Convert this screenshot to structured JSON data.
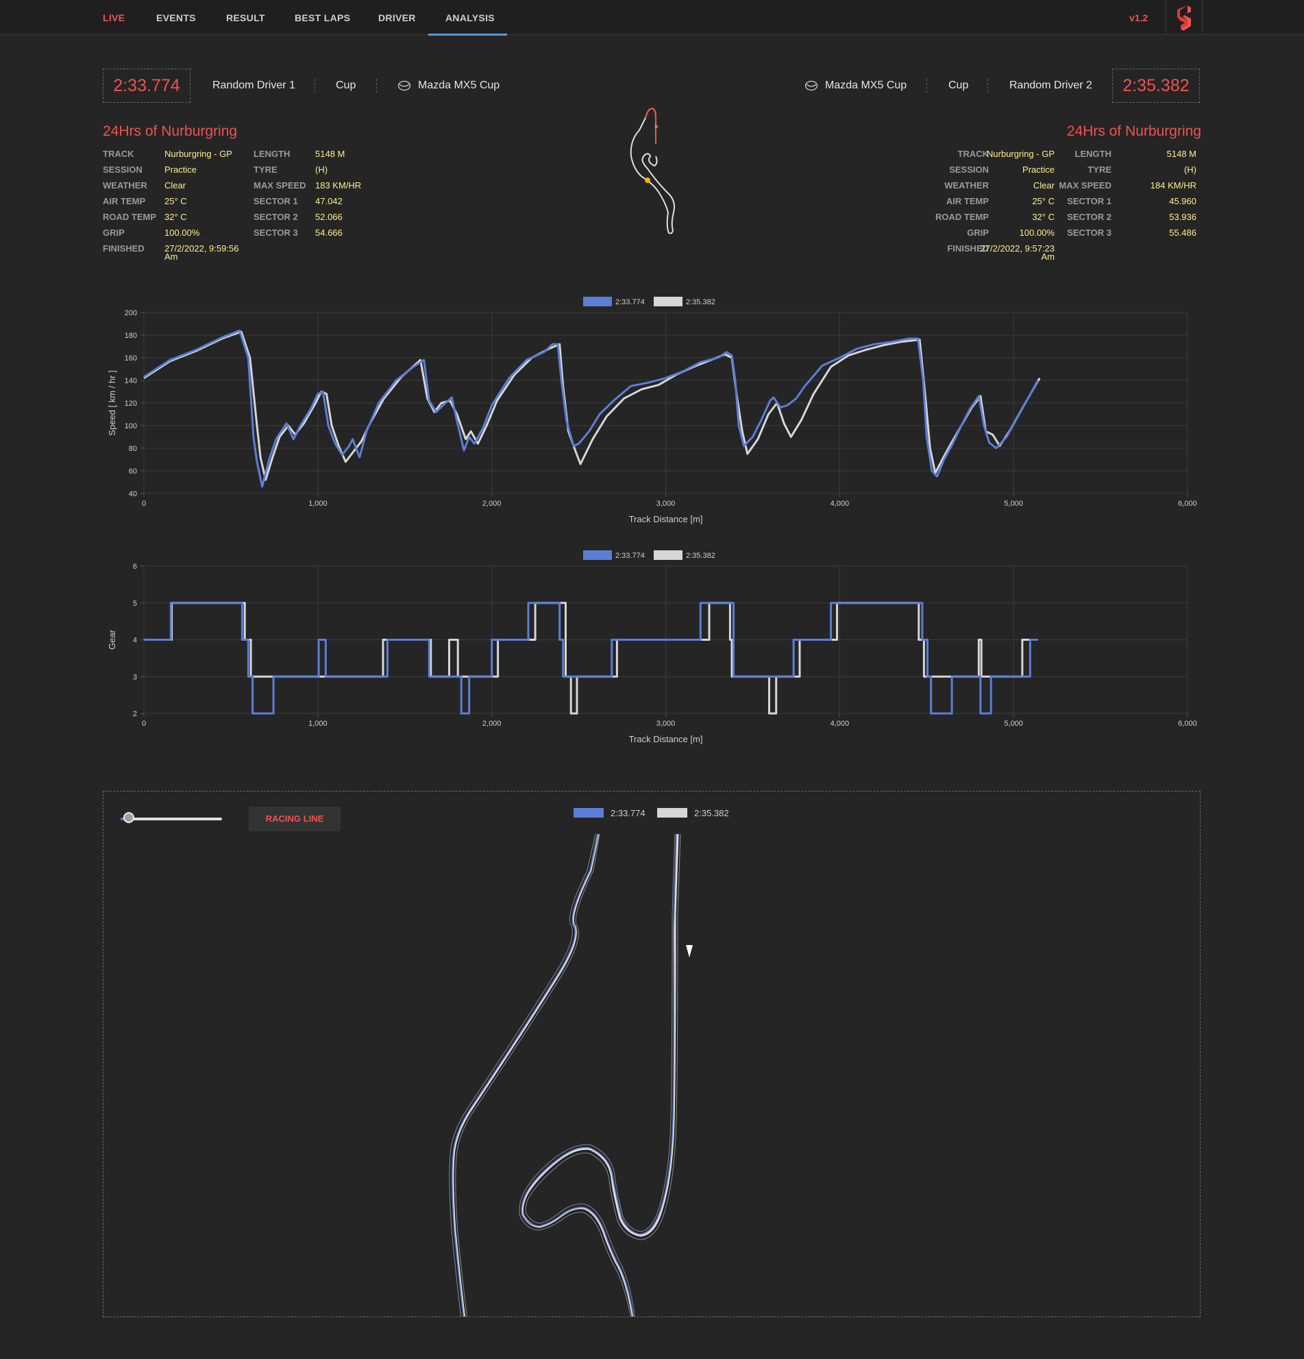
{
  "nav": {
    "items": [
      "LIVE",
      "EVENTS",
      "RESULT",
      "BEST LAPS",
      "DRIVER",
      "ANALYSIS"
    ],
    "active": "ANALYSIS",
    "version": "v1.2",
    "logo_icon": "s-logo-icon"
  },
  "left": {
    "laptime": "2:33.774",
    "driver": "Random Driver 1",
    "class": "Cup",
    "car": "Mazda MX5 Cup",
    "car_icon": "mazda-logo-icon",
    "event": "24Hrs of Nurburgring",
    "info_a": [
      {
        "label": "TRACK",
        "value": "Nurburgring - GP"
      },
      {
        "label": "SESSION",
        "value": "Practice"
      },
      {
        "label": "WEATHER",
        "value": "Clear"
      },
      {
        "label": "AIR TEMP",
        "value": "25° C"
      },
      {
        "label": "ROAD TEMP",
        "value": "32° C"
      },
      {
        "label": "GRIP",
        "value": "100.00%"
      },
      {
        "label": "FINISHED",
        "value": "27/2/2022, 9:59:56",
        "value2": "Am"
      }
    ],
    "info_b": [
      {
        "label": "LENGTH",
        "value": "5148 M"
      },
      {
        "label": "TYRE",
        "value": "(H)"
      },
      {
        "label": "MAX SPEED",
        "value": "183 KM/HR"
      },
      {
        "label": "SECTOR 1",
        "value": "47.042"
      },
      {
        "label": "SECTOR 2",
        "value": "52.066"
      },
      {
        "label": "SECTOR 3",
        "value": "54.666"
      }
    ]
  },
  "right": {
    "laptime": "2:35.382",
    "driver": "Random Driver 2",
    "class": "Cup",
    "car": "Mazda MX5 Cup",
    "car_icon": "mazda-logo-icon",
    "event": "24Hrs of Nurburgring",
    "info_a": [
      {
        "label": "TRACK",
        "value": "Nurburgring - GP"
      },
      {
        "label": "SESSION",
        "value": "Practice"
      },
      {
        "label": "WEATHER",
        "value": "Clear"
      },
      {
        "label": "AIR TEMP",
        "value": "25° C"
      },
      {
        "label": "ROAD TEMP",
        "value": "32° C"
      },
      {
        "label": "GRIP",
        "value": "100.00%"
      },
      {
        "label": "FINISHED",
        "value": "27/2/2022, 9:57:23",
        "value2": "Am"
      }
    ],
    "info_b": [
      {
        "label": "LENGTH",
        "value": "5148 M"
      },
      {
        "label": "TYRE",
        "value": "(H)"
      },
      {
        "label": "MAX SPEED",
        "value": "184 KM/HR"
      },
      {
        "label": "SECTOR 1",
        "value": "45.960"
      },
      {
        "label": "SECTOR 2",
        "value": "53.936"
      },
      {
        "label": "SECTOR 3",
        "value": "55.486"
      }
    ]
  },
  "colors": {
    "lap1": "#5b7fd6",
    "lap2": "#d6d6d6",
    "accent": "#ef5350",
    "value": "#ffee8c"
  },
  "chart_data": [
    {
      "type": "line",
      "name": "speed",
      "xlabel": "Track Distance [m]",
      "ylabel": "Speed [ km / hr ]",
      "xlim": [
        0,
        6000
      ],
      "ylim": [
        40,
        200
      ],
      "xticks": [
        0,
        1000,
        2000,
        3000,
        4000,
        5000,
        6000
      ],
      "xtick_labels": [
        "0",
        "1,000",
        "2,000",
        "3,000",
        "4,000",
        "5,000",
        "6,000"
      ],
      "yticks": [
        40,
        60,
        80,
        100,
        120,
        140,
        160,
        180,
        200
      ],
      "legend": "top-center",
      "series": [
        {
          "name": "2:33.774",
          "color": "#5b7fd6",
          "points": [
            [
              0,
              143
            ],
            [
              150,
              158
            ],
            [
              300,
              167
            ],
            [
              450,
              178
            ],
            [
              550,
              184
            ],
            [
              600,
              160
            ],
            [
              630,
              90
            ],
            [
              650,
              68
            ],
            [
              680,
              46
            ],
            [
              720,
              70
            ],
            [
              760,
              88
            ],
            [
              820,
              102
            ],
            [
              860,
              88
            ],
            [
              900,
              100
            ],
            [
              960,
              115
            ],
            [
              1000,
              128
            ],
            [
              1030,
              130
            ],
            [
              1060,
              100
            ],
            [
              1100,
              84
            ],
            [
              1140,
              74
            ],
            [
              1180,
              82
            ],
            [
              1200,
              88
            ],
            [
              1240,
              72
            ],
            [
              1280,
              95
            ],
            [
              1350,
              120
            ],
            [
              1450,
              140
            ],
            [
              1550,
              152
            ],
            [
              1610,
              158
            ],
            [
              1640,
              122
            ],
            [
              1680,
              112
            ],
            [
              1720,
              118
            ],
            [
              1770,
              125
            ],
            [
              1800,
              104
            ],
            [
              1840,
              78
            ],
            [
              1870,
              90
            ],
            [
              1900,
              84
            ],
            [
              1950,
              98
            ],
            [
              2000,
              118
            ],
            [
              2100,
              142
            ],
            [
              2200,
              158
            ],
            [
              2300,
              165
            ],
            [
              2350,
              172
            ],
            [
              2380,
              172
            ],
            [
              2400,
              140
            ],
            [
              2430,
              104
            ],
            [
              2470,
              82
            ],
            [
              2500,
              84
            ],
            [
              2560,
              95
            ],
            [
              2620,
              110
            ],
            [
              2700,
              122
            ],
            [
              2800,
              135
            ],
            [
              2900,
              138
            ],
            [
              3000,
              142
            ],
            [
              3100,
              148
            ],
            [
              3200,
              156
            ],
            [
              3300,
              160
            ],
            [
              3350,
              165
            ],
            [
              3380,
              162
            ],
            [
              3400,
              140
            ],
            [
              3420,
              100
            ],
            [
              3450,
              82
            ],
            [
              3500,
              90
            ],
            [
              3550,
              105
            ],
            [
              3600,
              122
            ],
            [
              3620,
              125
            ],
            [
              3660,
              116
            ],
            [
              3700,
              118
            ],
            [
              3750,
              124
            ],
            [
              3800,
              135
            ],
            [
              3900,
              153
            ],
            [
              4000,
              160
            ],
            [
              4100,
              168
            ],
            [
              4200,
              172
            ],
            [
              4300,
              174
            ],
            [
              4400,
              177
            ],
            [
              4450,
              177
            ],
            [
              4480,
              140
            ],
            [
              4500,
              90
            ],
            [
              4530,
              60
            ],
            [
              4560,
              55
            ],
            [
              4600,
              70
            ],
            [
              4650,
              84
            ],
            [
              4700,
              100
            ],
            [
              4750,
              115
            ],
            [
              4800,
              126
            ],
            [
              4830,
              100
            ],
            [
              4860,
              85
            ],
            [
              4900,
              80
            ],
            [
              4960,
              90
            ],
            [
              5050,
              115
            ],
            [
              5140,
              140
            ]
          ]
        },
        {
          "name": "2:35.382",
          "color": "#d6d6d6",
          "points": [
            [
              0,
              142
            ],
            [
              150,
              157
            ],
            [
              300,
              166
            ],
            [
              450,
              177
            ],
            [
              560,
              183
            ],
            [
              610,
              160
            ],
            [
              650,
              100
            ],
            [
              670,
              72
            ],
            [
              700,
              52
            ],
            [
              740,
              72
            ],
            [
              780,
              90
            ],
            [
              830,
              100
            ],
            [
              870,
              92
            ],
            [
              920,
              102
            ],
            [
              980,
              118
            ],
            [
              1020,
              130
            ],
            [
              1050,
              128
            ],
            [
              1080,
              100
            ],
            [
              1120,
              82
            ],
            [
              1160,
              68
            ],
            [
              1200,
              76
            ],
            [
              1250,
              86
            ],
            [
              1300,
              102
            ],
            [
              1380,
              124
            ],
            [
              1480,
              143
            ],
            [
              1590,
              158
            ],
            [
              1630,
              124
            ],
            [
              1670,
              112
            ],
            [
              1710,
              120
            ],
            [
              1760,
              122
            ],
            [
              1800,
              110
            ],
            [
              1850,
              88
            ],
            [
              1880,
              95
            ],
            [
              1920,
              84
            ],
            [
              1970,
              100
            ],
            [
              2030,
              122
            ],
            [
              2130,
              145
            ],
            [
              2230,
              160
            ],
            [
              2330,
              168
            ],
            [
              2390,
              172
            ],
            [
              2410,
              135
            ],
            [
              2440,
              95
            ],
            [
              2480,
              78
            ],
            [
              2510,
              66
            ],
            [
              2580,
              88
            ],
            [
              2660,
              108
            ],
            [
              2760,
              124
            ],
            [
              2860,
              132
            ],
            [
              2960,
              136
            ],
            [
              3060,
              145
            ],
            [
              3160,
              152
            ],
            [
              3260,
              158
            ],
            [
              3340,
              163
            ],
            [
              3380,
              160
            ],
            [
              3410,
              125
            ],
            [
              3440,
              95
            ],
            [
              3470,
              75
            ],
            [
              3530,
              88
            ],
            [
              3590,
              110
            ],
            [
              3640,
              120
            ],
            [
              3680,
              102
            ],
            [
              3720,
              90
            ],
            [
              3780,
              105
            ],
            [
              3850,
              128
            ],
            [
              3950,
              152
            ],
            [
              4050,
              162
            ],
            [
              4150,
              167
            ],
            [
              4250,
              171
            ],
            [
              4350,
              174
            ],
            [
              4460,
              176
            ],
            [
              4490,
              130
            ],
            [
              4520,
              80
            ],
            [
              4550,
              58
            ],
            [
              4590,
              70
            ],
            [
              4640,
              84
            ],
            [
              4700,
              100
            ],
            [
              4760,
              116
            ],
            [
              4810,
              126
            ],
            [
              4840,
              95
            ],
            [
              4880,
              92
            ],
            [
              4920,
              82
            ],
            [
              4980,
              96
            ],
            [
              5060,
              118
            ],
            [
              5150,
              142
            ]
          ]
        }
      ]
    },
    {
      "type": "line",
      "name": "gear",
      "xlabel": "Track Distance [m]",
      "ylabel": "Gear",
      "xlim": [
        0,
        6000
      ],
      "ylim": [
        2,
        6
      ],
      "xticks": [
        0,
        1000,
        2000,
        3000,
        4000,
        5000,
        6000
      ],
      "xtick_labels": [
        "0",
        "1,000",
        "2,000",
        "3,000",
        "4,000",
        "5,000",
        "6,000"
      ],
      "yticks": [
        2,
        3,
        4,
        5,
        6
      ],
      "legend": "top-center",
      "series": [
        {
          "name": "2:33.774",
          "color": "#5b7fd6",
          "steps": [
            [
              0,
              4
            ],
            [
              155,
              5
            ],
            [
              565,
              4
            ],
            [
              600,
              3
            ],
            [
              625,
              2
            ],
            [
              745,
              3
            ],
            [
              1005,
              4
            ],
            [
              1045,
              3
            ],
            [
              1400,
              4
            ],
            [
              1640,
              3
            ],
            [
              1825,
              2
            ],
            [
              1870,
              3
            ],
            [
              2000,
              4
            ],
            [
              2210,
              5
            ],
            [
              2390,
              4
            ],
            [
              2410,
              3
            ],
            [
              2690,
              4
            ],
            [
              3200,
              5
            ],
            [
              3390,
              3
            ],
            [
              3735,
              4
            ],
            [
              3950,
              5
            ],
            [
              4475,
              4
            ],
            [
              4505,
              3
            ],
            [
              4525,
              2
            ],
            [
              4645,
              3
            ],
            [
              4810,
              2
            ],
            [
              4870,
              3
            ],
            [
              5095,
              4
            ],
            [
              5140,
              4
            ]
          ]
        },
        {
          "name": "2:35.382",
          "color": "#d6d6d6",
          "steps": [
            [
              0,
              4
            ],
            [
              160,
              5
            ],
            [
              580,
              4
            ],
            [
              615,
              3
            ],
            [
              1000,
              3
            ],
            [
              1375,
              4
            ],
            [
              1650,
              3
            ],
            [
              1755,
              4
            ],
            [
              1805,
              3
            ],
            [
              2035,
              4
            ],
            [
              2250,
              5
            ],
            [
              2425,
              3
            ],
            [
              2455,
              2
            ],
            [
              2490,
              3
            ],
            [
              2720,
              4
            ],
            [
              3250,
              5
            ],
            [
              3370,
              4
            ],
            [
              3380,
              3
            ],
            [
              3595,
              2
            ],
            [
              3635,
              3
            ],
            [
              3770,
              4
            ],
            [
              3985,
              5
            ],
            [
              4455,
              4
            ],
            [
              4485,
              3
            ],
            [
              4800,
              4
            ],
            [
              4815,
              3
            ],
            [
              5050,
              4
            ],
            [
              5140,
              4
            ]
          ]
        }
      ]
    }
  ],
  "racing_line": {
    "button": "RACING LINE",
    "legend": [
      "2:33.774",
      "2:35.382"
    ],
    "slider_value": 0.08
  }
}
